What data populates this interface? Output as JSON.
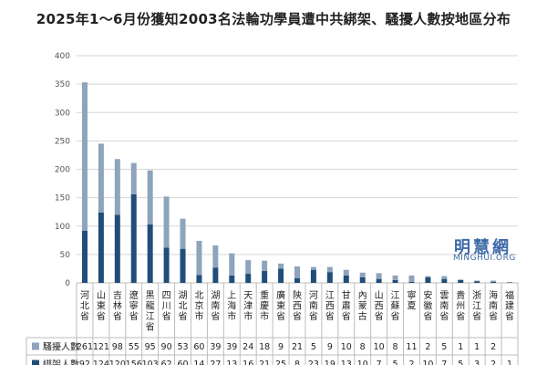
{
  "chart_data": {
    "type": "bar",
    "title": "2025年1～6月份獲知2003名法輪功學員遭中共綁架、騷擾人數按地區分布",
    "xlabel": "",
    "ylabel": "",
    "ylim": [
      0,
      400
    ],
    "yticks": [
      0,
      50,
      100,
      150,
      200,
      250,
      300,
      350,
      400
    ],
    "grid": true,
    "stacked": true,
    "legend": "bottom-left table",
    "categories": [
      "河北省",
      "山東省",
      "吉林省",
      "遼寧省",
      "黑龍江省",
      "四川省",
      "湖北省",
      "北京市",
      "湖南省",
      "上海市",
      "天津市",
      "重慶市",
      "廣東省",
      "陝西省",
      "河南省",
      "江西省",
      "甘肅省",
      "內蒙古",
      "山西省",
      "江蘇省",
      "寧夏",
      "安徽省",
      "雲南省",
      "貴州省",
      "浙江省",
      "海南省",
      "福建省"
    ],
    "series": [
      {
        "name": "騷擾人數",
        "color": "#8ea3bc",
        "values": [
          261,
          121,
          98,
          55,
          95,
          90,
          53,
          60,
          39,
          39,
          24,
          18,
          9,
          21,
          5,
          9,
          10,
          8,
          10,
          8,
          11,
          2,
          5,
          1,
          1,
          2,
          ""
        ]
      },
      {
        "name": "綁架人數",
        "color": "#1f4e79",
        "values": [
          92,
          124,
          120,
          156,
          103,
          62,
          60,
          14,
          27,
          13,
          16,
          21,
          25,
          8,
          23,
          19,
          13,
          10,
          7,
          5,
          2,
          10,
          7,
          5,
          3,
          2,
          1
        ]
      }
    ]
  },
  "watermark": {
    "name_cn": "明慧網",
    "name_en": "MINGHUI.ORG"
  }
}
